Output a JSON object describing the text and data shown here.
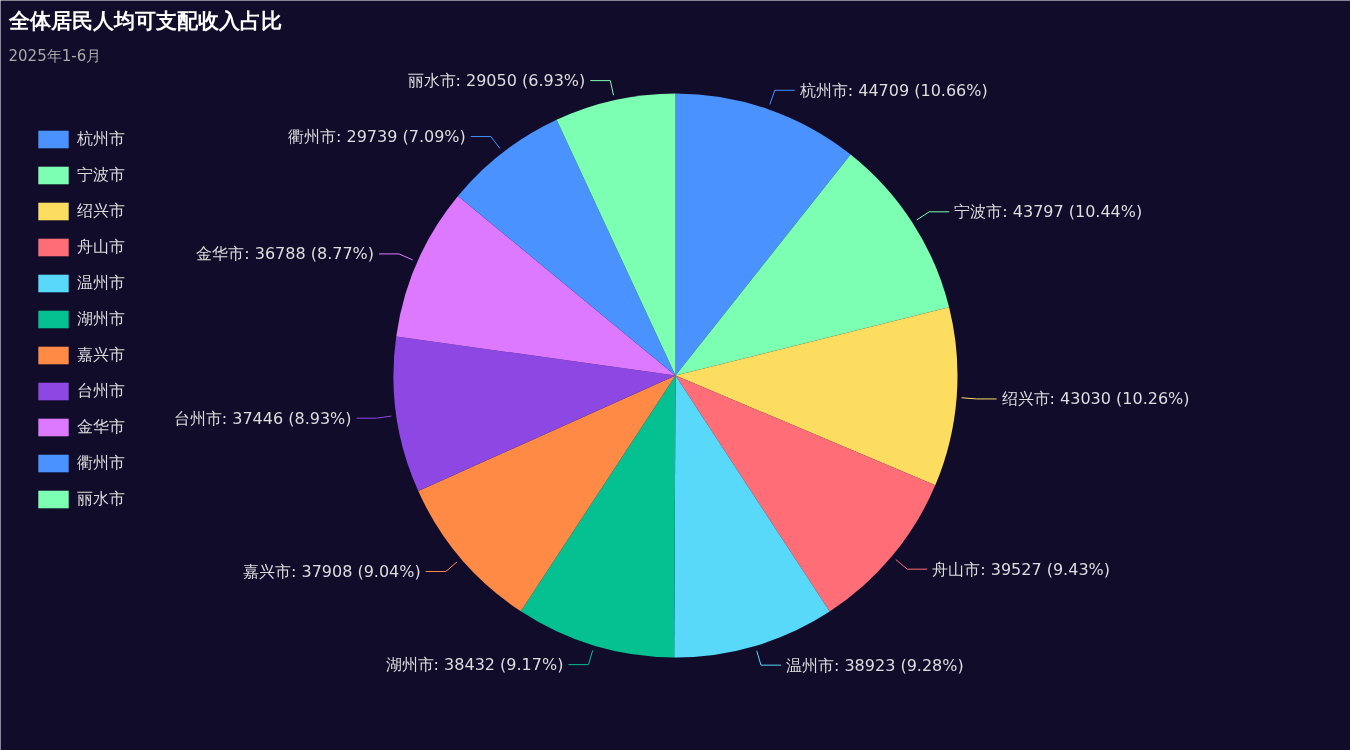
{
  "chart_data": {
    "type": "pie",
    "title": "全体居民人均可支配收入占比",
    "subtitle": "2025年1-6月",
    "categories": [
      "杭州市",
      "宁波市",
      "绍兴市",
      "舟山市",
      "温州市",
      "湖州市",
      "嘉兴市",
      "台州市",
      "金华市",
      "衢州市",
      "丽水市"
    ],
    "values": [
      44709,
      43797,
      43030,
      39527,
      38923,
      38432,
      37908,
      37446,
      36788,
      29739,
      29050
    ],
    "value_labels": [
      "杭州市: 44709 (10.66%)",
      "宁波市: 43797 (10.44%)",
      "绍兴市: 43030 (10.26%)",
      "舟山市: 39527 (9.43%)",
      "温州市: 38923 (9.28%)",
      "湖州市: 38432 (9.17%)",
      "嘉兴市: 37908 (9.04%)",
      "台州市: 37446 (8.93%)",
      "金华市: 36788 (8.77%)",
      "衢州市: 29739 (7.09%)",
      "丽水市: 29050 (6.93%)"
    ],
    "colors": [
      "#4992ff",
      "#7cffb2",
      "#fddd60",
      "#ff6e76",
      "#58d9f9",
      "#05c091",
      "#ff8a45",
      "#8d48e3",
      "#dd79ff",
      "#4992ff",
      "#7cffb2"
    ],
    "legend": "left"
  }
}
